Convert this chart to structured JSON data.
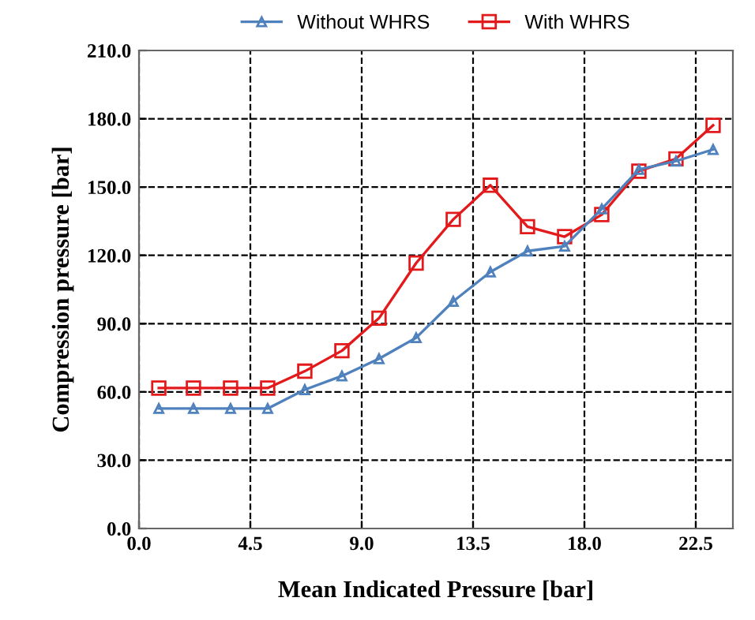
{
  "chart_data": {
    "type": "line",
    "xlabel": "Mean Indicated Pressure [bar]",
    "ylabel": "Compression pressure [bar]",
    "x": [
      0.8,
      2.2,
      3.7,
      5.2,
      6.7,
      8.2,
      9.7,
      11.2,
      12.7,
      14.2,
      15.7,
      17.2,
      18.7,
      20.2,
      21.7,
      23.2
    ],
    "series": [
      {
        "name": "Without WHRS",
        "color": "#4f81bd",
        "marker": "triangle",
        "values": [
          52.7,
          52.7,
          52.7,
          52.7,
          61.0,
          67.0,
          74.6,
          83.8,
          99.8,
          112.7,
          121.9,
          124.0,
          140.4,
          157.7,
          161.4,
          166.5
        ]
      },
      {
        "name": "With WHRS",
        "color": "#e31a1c",
        "marker": "square",
        "values": [
          61.7,
          61.7,
          61.7,
          61.7,
          69.1,
          78.1,
          92.4,
          116.6,
          135.8,
          150.8,
          132.6,
          128.2,
          137.9,
          157.0,
          162.4,
          177.1
        ]
      }
    ],
    "xlim": [
      0,
      24
    ],
    "xticks": [
      {
        "value": 0,
        "label": "0.0"
      },
      {
        "value": 4.5,
        "label": "4.5"
      },
      {
        "value": 9,
        "label": "9.0"
      },
      {
        "value": 13.5,
        "label": "13.5"
      },
      {
        "value": 18,
        "label": "18.0"
      },
      {
        "value": 22.5,
        "label": "22.5"
      }
    ],
    "ylim": [
      0,
      210
    ],
    "yticks": [
      {
        "value": 0,
        "label": "0.0"
      },
      {
        "value": 30,
        "label": "30.0"
      },
      {
        "value": 60,
        "label": "60.0"
      },
      {
        "value": 90,
        "label": "90.0"
      },
      {
        "value": 120,
        "label": "120.0"
      },
      {
        "value": 150,
        "label": "150.0"
      },
      {
        "value": 180,
        "label": "180.0"
      },
      {
        "value": 210,
        "label": "210.0"
      }
    ],
    "grid": true,
    "legend": "top",
    "line_style": "solid"
  }
}
